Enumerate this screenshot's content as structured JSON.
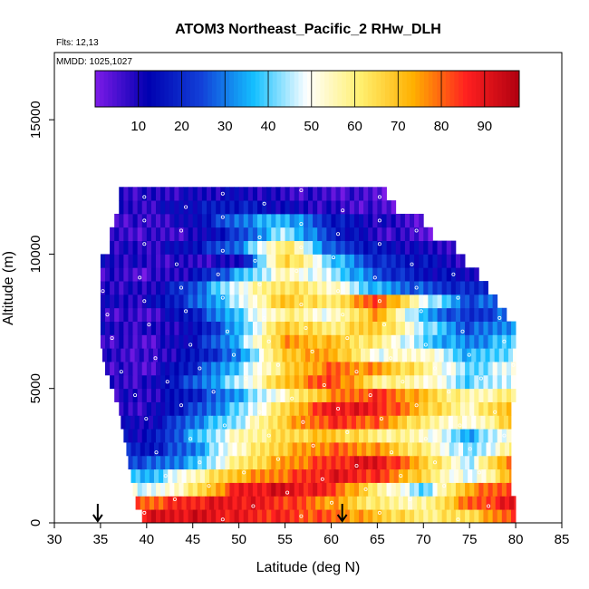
{
  "chart_data": {
    "type": "heatmap",
    "title": "ATOM3 Northeast_Pacific_2 RHw_DLH",
    "annotations": [
      "Flts: 12,13",
      "MMDD: 1025,1027"
    ],
    "xlabel": "Latitude (deg N)",
    "ylabel": "Altitude (m)",
    "xlim": [
      30,
      85
    ],
    "ylim": [
      0,
      17500
    ],
    "x_ticks": [
      "30",
      "35",
      "40",
      "45",
      "50",
      "55",
      "60",
      "65",
      "70",
      "75",
      "80",
      "85"
    ],
    "y_ticks": [
      "0",
      "5000",
      "10000",
      "15000"
    ],
    "colorbar": {
      "range": [
        0,
        98
      ],
      "ticks": [
        "10",
        "20",
        "30",
        "40",
        "50",
        "60",
        "70",
        "80",
        "90"
      ],
      "placement": "top"
    },
    "colors": {
      "scale": [
        "#7e1be8",
        "#0000b0",
        "#1240d8",
        "#14c0ff",
        "#ffffff",
        "#fff070",
        "#ffb000",
        "#ff2020",
        "#b00010"
      ]
    },
    "arrow_markers_latitude": [
      34.7,
      61.2
    ],
    "altitude_bands_m": [
      250,
      750,
      1250,
      1750,
      2250,
      2750,
      3250,
      3750,
      4250,
      4750,
      5250,
      5750,
      6250,
      6750,
      7250,
      7750,
      8250,
      8750,
      9250,
      9750,
      10250,
      10750,
      11250,
      11750,
      12250
    ],
    "band_lat_start": [
      39.5,
      38.8,
      38.5,
      38.3,
      38,
      37.8,
      37.5,
      37.2,
      37,
      36.5,
      36,
      35.5,
      35.2,
      35,
      35,
      35,
      35,
      35,
      35,
      35,
      36,
      36,
      36.5,
      37,
      37
    ],
    "band_lat_end": [
      80,
      80,
      79.5,
      79.5,
      79.5,
      79.5,
      79.5,
      79.5,
      79.5,
      80,
      80,
      80,
      80,
      80,
      80,
      79,
      78,
      77,
      76,
      74.5,
      73.5,
      71,
      70,
      67,
      66
    ],
    "profile_lat": [
      35,
      40,
      45,
      50,
      55,
      60,
      65,
      70,
      75,
      80
    ],
    "rh_profiles": [
      [
        95,
        90,
        92,
        88,
        85,
        80,
        70,
        60,
        65,
        85
      ],
      [
        85,
        80,
        88,
        90,
        85,
        75,
        60,
        55,
        80,
        90
      ],
      [
        70,
        45,
        60,
        88,
        92,
        85,
        60,
        40,
        75,
        85
      ],
      [
        45,
        35,
        55,
        72,
        80,
        90,
        85,
        65,
        45,
        75
      ],
      [
        30,
        25,
        35,
        60,
        75,
        85,
        92,
        70,
        45,
        85
      ],
      [
        25,
        15,
        30,
        55,
        70,
        80,
        75,
        60,
        40,
        60
      ],
      [
        18,
        12,
        35,
        55,
        65,
        70,
        60,
        55,
        35,
        55
      ],
      [
        12,
        10,
        30,
        45,
        70,
        85,
        80,
        60,
        50,
        70
      ],
      [
        10,
        8,
        22,
        40,
        65,
        90,
        88,
        70,
        55,
        75
      ],
      [
        10,
        8,
        18,
        35,
        55,
        75,
        85,
        70,
        55,
        60
      ],
      [
        8,
        8,
        25,
        45,
        70,
        85,
        60,
        55,
        40,
        50
      ],
      [
        8,
        5,
        20,
        40,
        65,
        80,
        75,
        60,
        40,
        50
      ],
      [
        10,
        5,
        15,
        30,
        70,
        75,
        50,
        55,
        35,
        45
      ],
      [
        8,
        5,
        15,
        38,
        75,
        70,
        60,
        40,
        30,
        40
      ],
      [
        10,
        8,
        12,
        35,
        70,
        60,
        70,
        45,
        25,
        35
      ],
      [
        8,
        5,
        18,
        40,
        60,
        50,
        75,
        35,
        20,
        30
      ],
      [
        10,
        10,
        25,
        45,
        70,
        60,
        85,
        50,
        25,
        30
      ],
      [
        10,
        8,
        25,
        50,
        65,
        55,
        35,
        25,
        18,
        25
      ],
      [
        8,
        5,
        12,
        35,
        55,
        45,
        25,
        15,
        12,
        20
      ],
      [
        12,
        8,
        8,
        10,
        70,
        40,
        20,
        15,
        8,
        15
      ],
      [
        10,
        8,
        15,
        30,
        65,
        25,
        15,
        10,
        8,
        15
      ],
      [
        8,
        6,
        8,
        22,
        45,
        20,
        8,
        5,
        3,
        10
      ],
      [
        8,
        6,
        12,
        30,
        38,
        18,
        10,
        5,
        3,
        5
      ],
      [
        8,
        8,
        15,
        18,
        12,
        8,
        5,
        3,
        3,
        5
      ],
      [
        10,
        8,
        10,
        12,
        8,
        6,
        5,
        3,
        3,
        5
      ]
    ]
  }
}
